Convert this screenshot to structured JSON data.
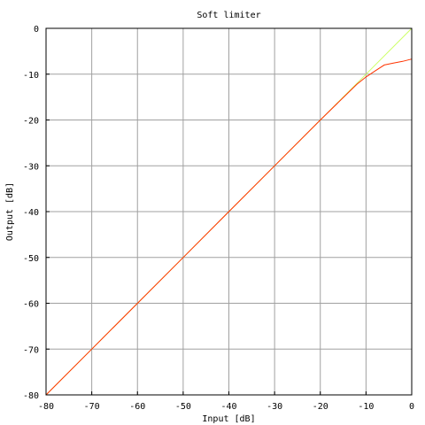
{
  "chart_data": {
    "type": "line",
    "title": "Soft limiter",
    "xlabel": "Input [dB]",
    "ylabel": "Output [dB]",
    "xlim": [
      -80,
      0
    ],
    "ylim": [
      -80,
      0
    ],
    "xticks": [
      "-80",
      "-70",
      "-60",
      "-50",
      "-40",
      "-30",
      "-20",
      "-10",
      "0"
    ],
    "yticks": [
      "0",
      "-10",
      "-20",
      "-30",
      "-40",
      "-50",
      "-60",
      "-70",
      "-80"
    ],
    "grid": true,
    "series": [
      {
        "color": "#ccff66",
        "x": [
          -80,
          -70,
          -60,
          -50,
          -40,
          -30,
          -20,
          -10,
          0
        ],
        "y": [
          -80,
          -70,
          -60,
          -50,
          -40,
          -30,
          -20,
          -10,
          0
        ]
      },
      {
        "color": "#ff3300",
        "x": [
          -80,
          -70,
          -60,
          -50,
          -40,
          -30,
          -20,
          -12,
          -10,
          -8,
          -6,
          -4,
          -2,
          0
        ],
        "y": [
          -80,
          -70,
          -60,
          -50,
          -40,
          -30,
          -20,
          -12.2,
          -10.6,
          -9.3,
          -8.0,
          -7.6,
          -7.2,
          -6.7
        ]
      }
    ]
  }
}
